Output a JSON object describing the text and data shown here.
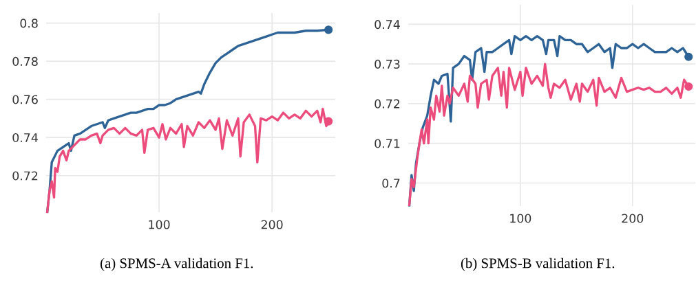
{
  "chart_data": [
    {
      "type": "line",
      "title": "(a) SPMS-A validation F1.",
      "xlim": [
        0,
        256
      ],
      "xticks": [
        100,
        200
      ],
      "ylim": [
        0.7008,
        0.8053
      ],
      "yticks": [
        {
          "value": 0.72,
          "label": "0.72"
        },
        {
          "value": 0.74,
          "label": "0.74"
        },
        {
          "value": 0.76,
          "label": "0.76"
        },
        {
          "value": 0.78,
          "label": "0.78"
        },
        {
          "value": 0.8,
          "label": "0.8"
        }
      ],
      "grid": true,
      "legend": false,
      "series": [
        {
          "color": "#2d6396",
          "x": [
            1,
            3,
            5,
            10,
            15,
            20,
            22,
            25,
            30,
            35,
            40,
            45,
            50,
            52,
            55,
            60,
            65,
            70,
            75,
            80,
            85,
            90,
            95,
            100,
            105,
            110,
            115,
            120,
            125,
            130,
            135,
            137,
            140,
            145,
            150,
            155,
            160,
            165,
            170,
            175,
            180,
            185,
            190,
            195,
            200,
            205,
            210,
            220,
            230,
            240,
            250
          ],
          "values": [
            0.701,
            0.712,
            0.727,
            0.733,
            0.735,
            0.737,
            0.733,
            0.741,
            0.742,
            0.744,
            0.746,
            0.747,
            0.748,
            0.745,
            0.749,
            0.75,
            0.751,
            0.752,
            0.753,
            0.753,
            0.754,
            0.755,
            0.755,
            0.757,
            0.757,
            0.758,
            0.76,
            0.761,
            0.762,
            0.763,
            0.764,
            0.763,
            0.768,
            0.774,
            0.779,
            0.782,
            0.784,
            0.786,
            0.788,
            0.789,
            0.79,
            0.791,
            0.792,
            0.793,
            0.794,
            0.795,
            0.795,
            0.795,
            0.796,
            0.796,
            0.7965
          ]
        },
        {
          "color": "#ec4c7c",
          "x": [
            1,
            3,
            5,
            7,
            8,
            10,
            12,
            15,
            18,
            20,
            25,
            30,
            35,
            40,
            45,
            48,
            50,
            55,
            60,
            65,
            70,
            75,
            80,
            85,
            87,
            90,
            95,
            100,
            103,
            106,
            110,
            115,
            120,
            122,
            125,
            130,
            135,
            140,
            145,
            150,
            153,
            156,
            160,
            165,
            170,
            172,
            175,
            180,
            185,
            187,
            190,
            195,
            200,
            205,
            210,
            215,
            220,
            225,
            230,
            235,
            240,
            243,
            245,
            248,
            250
          ],
          "values": [
            0.701,
            0.712,
            0.717,
            0.7085,
            0.724,
            0.722,
            0.73,
            0.733,
            0.728,
            0.733,
            0.736,
            0.739,
            0.739,
            0.741,
            0.742,
            0.737,
            0.741,
            0.744,
            0.745,
            0.742,
            0.745,
            0.742,
            0.741,
            0.744,
            0.732,
            0.744,
            0.745,
            0.74,
            0.747,
            0.739,
            0.745,
            0.742,
            0.747,
            0.735,
            0.746,
            0.741,
            0.748,
            0.745,
            0.749,
            0.744,
            0.75,
            0.734,
            0.749,
            0.741,
            0.75,
            0.73,
            0.748,
            0.752,
            0.746,
            0.727,
            0.75,
            0.749,
            0.751,
            0.749,
            0.753,
            0.75,
            0.752,
            0.75,
            0.754,
            0.751,
            0.754,
            0.748,
            0.755,
            0.746,
            0.7485
          ]
        },
        {
          "type": "scatter",
          "marker": "circle",
          "color": "#2d6396",
          "x": [
            250
          ],
          "values": [
            0.7965
          ]
        },
        {
          "type": "scatter",
          "marker": "circle",
          "color": "#ec4c7c",
          "x": [
            250
          ],
          "values": [
            0.7485
          ]
        }
      ]
    },
    {
      "type": "line",
      "title": "(b) SPMS-B validation F1.",
      "xlim": [
        0,
        256
      ],
      "xticks": [
        100,
        200
      ],
      "ylim": [
        0.6942,
        0.7449
      ],
      "yticks": [
        {
          "value": 0.7,
          "label": "0.7"
        },
        {
          "value": 0.71,
          "label": "0.71"
        },
        {
          "value": 0.72,
          "label": "0.72"
        },
        {
          "value": 0.73,
          "label": "0.73"
        },
        {
          "value": 0.74,
          "label": "0.74"
        }
      ],
      "grid": true,
      "legend": false,
      "series": [
        {
          "color": "#2d6396",
          "x": [
            1,
            3,
            5,
            7,
            10,
            13,
            17,
            20,
            23,
            27,
            30,
            35,
            38,
            40,
            45,
            50,
            55,
            57,
            60,
            65,
            68,
            70,
            75,
            80,
            85,
            90,
            92,
            95,
            100,
            105,
            110,
            115,
            120,
            123,
            125,
            130,
            133,
            135,
            140,
            145,
            150,
            155,
            160,
            165,
            170,
            175,
            180,
            182,
            185,
            190,
            195,
            200,
            205,
            210,
            215,
            220,
            225,
            230,
            235,
            240,
            245,
            250
          ],
          "values": [
            0.6944,
            0.702,
            0.698,
            0.705,
            0.71,
            0.714,
            0.717,
            0.722,
            0.726,
            0.725,
            0.727,
            0.7275,
            0.7155,
            0.729,
            0.73,
            0.732,
            0.731,
            0.726,
            0.733,
            0.734,
            0.728,
            0.733,
            0.733,
            0.734,
            0.735,
            0.736,
            0.7325,
            0.737,
            0.736,
            0.737,
            0.736,
            0.737,
            0.736,
            0.7325,
            0.736,
            0.736,
            0.732,
            0.737,
            0.736,
            0.736,
            0.735,
            0.735,
            0.733,
            0.734,
            0.735,
            0.733,
            0.734,
            0.729,
            0.735,
            0.734,
            0.734,
            0.735,
            0.734,
            0.735,
            0.734,
            0.733,
            0.733,
            0.733,
            0.734,
            0.733,
            0.734,
            0.7318
          ]
        },
        {
          "color": "#ec4c7c",
          "x": [
            1,
            3,
            5,
            8,
            10,
            12,
            14,
            17,
            18,
            20,
            23,
            25,
            28,
            30,
            32,
            35,
            37,
            40,
            45,
            50,
            53,
            55,
            60,
            62,
            65,
            70,
            72,
            75,
            80,
            83,
            85,
            88,
            90,
            95,
            100,
            102,
            105,
            110,
            115,
            120,
            122,
            125,
            127,
            130,
            135,
            140,
            145,
            150,
            153,
            155,
            160,
            165,
            168,
            170,
            175,
            180,
            185,
            190,
            195,
            200,
            205,
            210,
            215,
            220,
            225,
            230,
            235,
            240,
            243,
            246,
            250
          ],
          "values": [
            0.6945,
            0.701,
            0.699,
            0.706,
            0.71,
            0.7135,
            0.71,
            0.716,
            0.71,
            0.719,
            0.716,
            0.722,
            0.718,
            0.7245,
            0.717,
            0.722,
            0.72,
            0.724,
            0.722,
            0.725,
            0.7205,
            0.727,
            0.725,
            0.719,
            0.725,
            0.726,
            0.721,
            0.727,
            0.729,
            0.722,
            0.728,
            0.719,
            0.729,
            0.7235,
            0.728,
            0.722,
            0.729,
            0.725,
            0.727,
            0.7245,
            0.73,
            0.724,
            0.7215,
            0.725,
            0.724,
            0.726,
            0.721,
            0.725,
            0.7205,
            0.725,
            0.723,
            0.726,
            0.7195,
            0.7265,
            0.723,
            0.724,
            0.7215,
            0.7265,
            0.723,
            0.7235,
            0.724,
            0.7235,
            0.724,
            0.723,
            0.723,
            0.724,
            0.7225,
            0.724,
            0.7215,
            0.726,
            0.7243
          ]
        },
        {
          "type": "scatter",
          "marker": "circle",
          "color": "#2d6396",
          "x": [
            250
          ],
          "values": [
            0.7318
          ]
        },
        {
          "type": "scatter",
          "marker": "circle",
          "color": "#ec4c7c",
          "x": [
            250
          ],
          "values": [
            0.7243
          ]
        }
      ]
    }
  ]
}
